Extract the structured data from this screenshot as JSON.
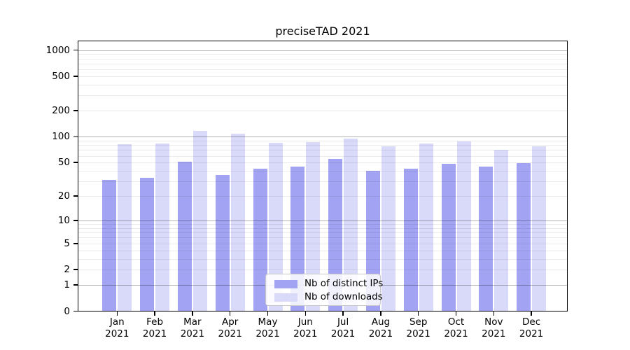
{
  "figure_title": "preciseTAD 2021",
  "chart_data": {
    "type": "bar",
    "title": "preciseTAD 2021",
    "categories": [
      "Jan 2021",
      "Feb 2021",
      "Mar 2021",
      "Apr 2021",
      "May 2021",
      "Jun 2021",
      "Jul 2021",
      "Aug 2021",
      "Sep 2021",
      "Oct 2021",
      "Nov 2021",
      "Dec 2021"
    ],
    "x_tick_month": [
      "Jan",
      "Feb",
      "Mar",
      "Apr",
      "May",
      "Jun",
      "Jul",
      "Aug",
      "Sep",
      "Oct",
      "Nov",
      "Dec"
    ],
    "x_tick_year": "2021",
    "series": [
      {
        "name": "Nb of distinct IPs",
        "color": "#a3a3f3",
        "values": [
          31,
          33,
          51,
          36,
          42,
          45,
          55,
          40,
          42,
          48,
          45,
          49
        ]
      },
      {
        "name": "Nb of downloads",
        "color": "#d9d9fa",
        "values": [
          82,
          83,
          117,
          108,
          85,
          86,
          95,
          77,
          83,
          89,
          71,
          77
        ]
      }
    ],
    "y_scale": "log1p",
    "y_ticks": [
      0,
      1,
      2,
      5,
      10,
      20,
      50,
      100,
      200,
      500,
      1000
    ],
    "y_major_gridlines": [
      1,
      10,
      100,
      1000
    ],
    "y_minor_gridline_pattern": "2-9 per decade",
    "ylim": [
      0,
      1260
    ],
    "grid": true,
    "legend_position": "inside bottom-center"
  }
}
